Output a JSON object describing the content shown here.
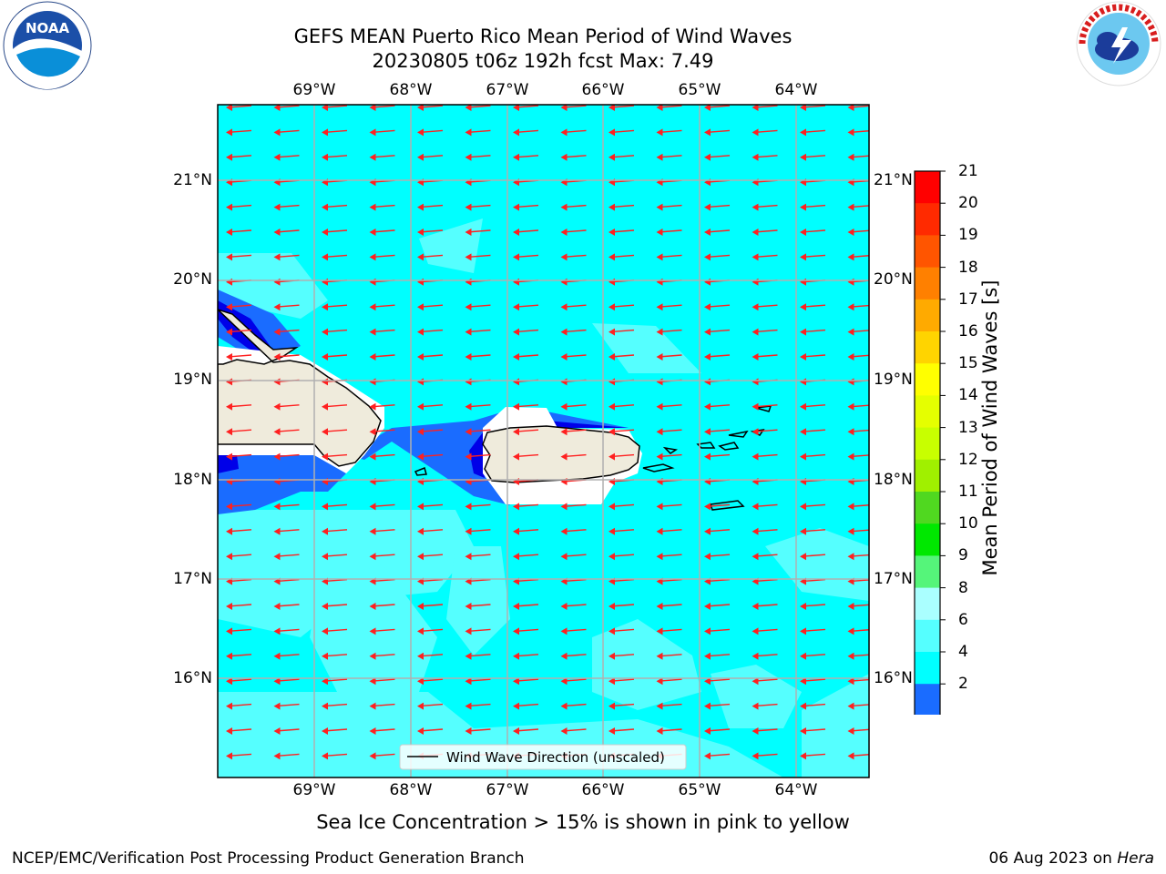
{
  "title": {
    "line1": "GEFS MEAN Puerto Rico Mean Period of Wind Waves",
    "line2": "20230805 t06z 192h fcst   Max: 7.49"
  },
  "map": {
    "lon_labels": [
      "69°W",
      "68°W",
      "67°W",
      "66°W",
      "65°W",
      "64°W"
    ],
    "lat_labels": [
      "21°N",
      "20°N",
      "19°N",
      "18°N",
      "17°N",
      "16°N"
    ],
    "legend_label": "Wind Wave Direction (unscaled)",
    "colors": {
      "land": "#efebdc",
      "water_4_6": "#00ffff",
      "water_6_8": "#55ffff",
      "water_2_4": "#1a6cff",
      "water_0_2": "#0000e8",
      "arrow": "#ff2020"
    }
  },
  "colorbar": {
    "title": "Mean Period of Wind Waves [s]",
    "ticks": [
      "21",
      "20",
      "19",
      "18",
      "17",
      "16",
      "15",
      "14",
      "13",
      "12",
      "11",
      "10",
      "9",
      "8",
      "6",
      "4",
      "2"
    ],
    "colors": [
      "#ff0000",
      "#ff2a00",
      "#ff5500",
      "#ff8000",
      "#ffaa00",
      "#ffd400",
      "#ffff00",
      "#e5ff00",
      "#c8ff00",
      "#a0f000",
      "#50d820",
      "#00e800",
      "#55f57a",
      "#aaffff",
      "#55ffff",
      "#00ffff",
      "#1a6cff"
    ],
    "under_color": "#0000e8"
  },
  "logos": {
    "noaa_text": "NOAA",
    "noaa_ring": "NATIONAL OCEANIC AND ATMOSPHERIC ADMINISTRATION · U.S. DEPARTMENT OF COMMERCE",
    "nws_ring": "NATIONAL WEATHER SERVICE"
  },
  "caption": "Sea Ice Concentration > 15% is shown in pink to yellow",
  "footer": {
    "left": "NCEP/EMC/Verification Post Processing Product Generation Branch",
    "right_prefix": "06 Aug 2023 on ",
    "right_host": "Hera"
  }
}
